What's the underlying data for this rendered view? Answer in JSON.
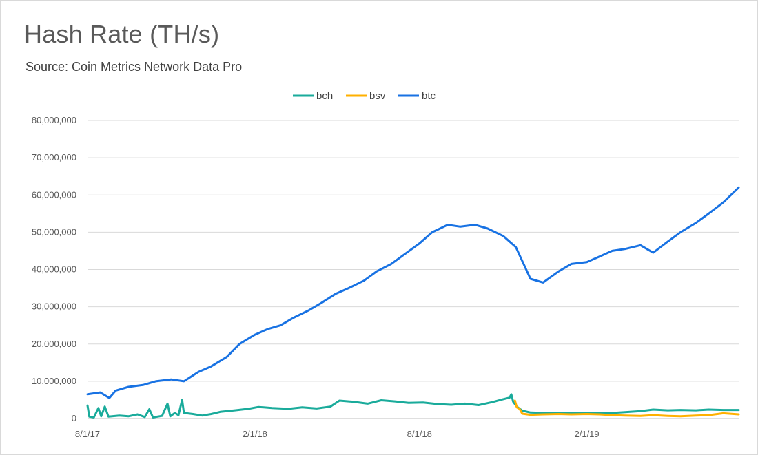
{
  "chart_data": {
    "type": "line",
    "title": "Hash Rate (TH/s)",
    "subtitle": "Source: Coin Metrics Network Data Pro",
    "xlabel": "",
    "ylabel": "",
    "x_range": [
      "2017-08-01",
      "2019-07-18"
    ],
    "x_ticks": [
      {
        "date": "2017-08-01",
        "label": "8/1/17"
      },
      {
        "date": "2018-02-01",
        "label": "2/1/18"
      },
      {
        "date": "2018-08-01",
        "label": "8/1/18"
      },
      {
        "date": "2019-02-01",
        "label": "2/1/19"
      }
    ],
    "ylim": [
      0,
      80000000
    ],
    "y_ticks": [
      {
        "value": 0,
        "label": "0"
      },
      {
        "value": 10000000,
        "label": "10,000,000"
      },
      {
        "value": 20000000,
        "label": "20,000,000"
      },
      {
        "value": 30000000,
        "label": "30,000,000"
      },
      {
        "value": 40000000,
        "label": "40,000,000"
      },
      {
        "value": 50000000,
        "label": "50,000,000"
      },
      {
        "value": 60000000,
        "label": "60,000,000"
      },
      {
        "value": 70000000,
        "label": "70,000,000"
      },
      {
        "value": 80000000,
        "label": "80,000,000"
      }
    ],
    "grid": true,
    "legend_position": "top-center",
    "series": [
      {
        "name": "bch",
        "color": "#1aab9b",
        "points": [
          [
            "2017-08-01",
            3500000
          ],
          [
            "2017-08-03",
            500000
          ],
          [
            "2017-08-08",
            300000
          ],
          [
            "2017-08-13",
            2800000
          ],
          [
            "2017-08-16",
            600000
          ],
          [
            "2017-08-20",
            3200000
          ],
          [
            "2017-08-24",
            500000
          ],
          [
            "2017-09-05",
            800000
          ],
          [
            "2017-09-15",
            600000
          ],
          [
            "2017-09-25",
            1100000
          ],
          [
            "2017-10-03",
            400000
          ],
          [
            "2017-10-08",
            2500000
          ],
          [
            "2017-10-12",
            300000
          ],
          [
            "2017-10-22",
            700000
          ],
          [
            "2017-10-28",
            4000000
          ],
          [
            "2017-10-31",
            600000
          ],
          [
            "2017-11-05",
            1500000
          ],
          [
            "2017-11-09",
            900000
          ],
          [
            "2017-11-13",
            5000000
          ],
          [
            "2017-11-15",
            1500000
          ],
          [
            "2017-11-25",
            1200000
          ],
          [
            "2017-12-05",
            800000
          ],
          [
            "2017-12-15",
            1200000
          ],
          [
            "2017-12-25",
            1800000
          ],
          [
            "2018-01-10",
            2200000
          ],
          [
            "2018-01-25",
            2600000
          ],
          [
            "2018-02-05",
            3100000
          ],
          [
            "2018-02-20",
            2800000
          ],
          [
            "2018-03-10",
            2600000
          ],
          [
            "2018-03-25",
            3000000
          ],
          [
            "2018-04-10",
            2700000
          ],
          [
            "2018-04-25",
            3200000
          ],
          [
            "2018-05-05",
            4800000
          ],
          [
            "2018-05-20",
            4500000
          ],
          [
            "2018-06-05",
            4000000
          ],
          [
            "2018-06-20",
            4900000
          ],
          [
            "2018-07-05",
            4600000
          ],
          [
            "2018-07-20",
            4200000
          ],
          [
            "2018-08-05",
            4300000
          ],
          [
            "2018-08-20",
            3900000
          ],
          [
            "2018-09-05",
            3700000
          ],
          [
            "2018-09-20",
            4000000
          ],
          [
            "2018-10-05",
            3600000
          ],
          [
            "2018-10-20",
            4400000
          ],
          [
            "2018-11-01",
            5200000
          ],
          [
            "2018-11-08",
            5600000
          ],
          [
            "2018-11-10",
            6500000
          ],
          [
            "2018-11-12",
            4500000
          ],
          [
            "2018-11-16",
            3200000
          ],
          [
            "2018-11-22",
            2100000
          ],
          [
            "2018-12-01",
            1600000
          ],
          [
            "2018-12-15",
            1500000
          ],
          [
            "2019-01-01",
            1500000
          ],
          [
            "2019-01-15",
            1400000
          ],
          [
            "2019-02-01",
            1500000
          ],
          [
            "2019-02-15",
            1500000
          ],
          [
            "2019-03-01",
            1500000
          ],
          [
            "2019-03-15",
            1700000
          ],
          [
            "2019-04-01",
            2000000
          ],
          [
            "2019-04-15",
            2400000
          ],
          [
            "2019-05-01",
            2200000
          ],
          [
            "2019-05-15",
            2300000
          ],
          [
            "2019-06-01",
            2200000
          ],
          [
            "2019-06-15",
            2400000
          ],
          [
            "2019-07-01",
            2300000
          ],
          [
            "2019-07-18",
            2300000
          ]
        ]
      },
      {
        "name": "bsv",
        "color": "#ffb000",
        "points": [
          [
            "2018-11-14",
            4800000
          ],
          [
            "2018-11-16",
            3000000
          ],
          [
            "2018-11-19",
            2600000
          ],
          [
            "2018-11-22",
            1300000
          ],
          [
            "2018-12-01",
            1000000
          ],
          [
            "2018-12-15",
            1100000
          ],
          [
            "2019-01-01",
            1200000
          ],
          [
            "2019-01-15",
            1100000
          ],
          [
            "2019-02-01",
            1200000
          ],
          [
            "2019-02-15",
            1100000
          ],
          [
            "2019-03-01",
            900000
          ],
          [
            "2019-03-15",
            800000
          ],
          [
            "2019-04-01",
            700000
          ],
          [
            "2019-04-15",
            900000
          ],
          [
            "2019-05-01",
            700000
          ],
          [
            "2019-05-15",
            600000
          ],
          [
            "2019-06-01",
            800000
          ],
          [
            "2019-06-15",
            900000
          ],
          [
            "2019-07-01",
            1400000
          ],
          [
            "2019-07-18",
            1100000
          ]
        ]
      },
      {
        "name": "btc",
        "color": "#1872e3",
        "points": [
          [
            "2017-08-01",
            6500000
          ],
          [
            "2017-08-15",
            7000000
          ],
          [
            "2017-08-25",
            5500000
          ],
          [
            "2017-09-01",
            7500000
          ],
          [
            "2017-09-15",
            8500000
          ],
          [
            "2017-10-01",
            9000000
          ],
          [
            "2017-10-15",
            10000000
          ],
          [
            "2017-11-01",
            10500000
          ],
          [
            "2017-11-15",
            10000000
          ],
          [
            "2017-12-01",
            12500000
          ],
          [
            "2017-12-15",
            14000000
          ],
          [
            "2018-01-01",
            16500000
          ],
          [
            "2018-01-15",
            20000000
          ],
          [
            "2018-02-01",
            22500000
          ],
          [
            "2018-02-15",
            24000000
          ],
          [
            "2018-03-01",
            25000000
          ],
          [
            "2018-03-15",
            27000000
          ],
          [
            "2018-04-01",
            29000000
          ],
          [
            "2018-04-15",
            31000000
          ],
          [
            "2018-05-01",
            33500000
          ],
          [
            "2018-05-15",
            35000000
          ],
          [
            "2018-06-01",
            37000000
          ],
          [
            "2018-06-15",
            39500000
          ],
          [
            "2018-07-01",
            41500000
          ],
          [
            "2018-07-15",
            44000000
          ],
          [
            "2018-08-01",
            47000000
          ],
          [
            "2018-08-15",
            50000000
          ],
          [
            "2018-09-01",
            52000000
          ],
          [
            "2018-09-15",
            51500000
          ],
          [
            "2018-10-01",
            52000000
          ],
          [
            "2018-10-15",
            51000000
          ],
          [
            "2018-11-01",
            49000000
          ],
          [
            "2018-11-15",
            46000000
          ],
          [
            "2018-12-01",
            37500000
          ],
          [
            "2018-12-15",
            36500000
          ],
          [
            "2019-01-01",
            39500000
          ],
          [
            "2019-01-15",
            41500000
          ],
          [
            "2019-02-01",
            42000000
          ],
          [
            "2019-02-15",
            43500000
          ],
          [
            "2019-03-01",
            45000000
          ],
          [
            "2019-03-15",
            45500000
          ],
          [
            "2019-04-01",
            46500000
          ],
          [
            "2019-04-15",
            44500000
          ],
          [
            "2019-05-01",
            47500000
          ],
          [
            "2019-05-15",
            50000000
          ],
          [
            "2019-06-01",
            52500000
          ],
          [
            "2019-06-15",
            55000000
          ],
          [
            "2019-07-01",
            58000000
          ],
          [
            "2019-07-18",
            62000000
          ]
        ]
      }
    ]
  }
}
